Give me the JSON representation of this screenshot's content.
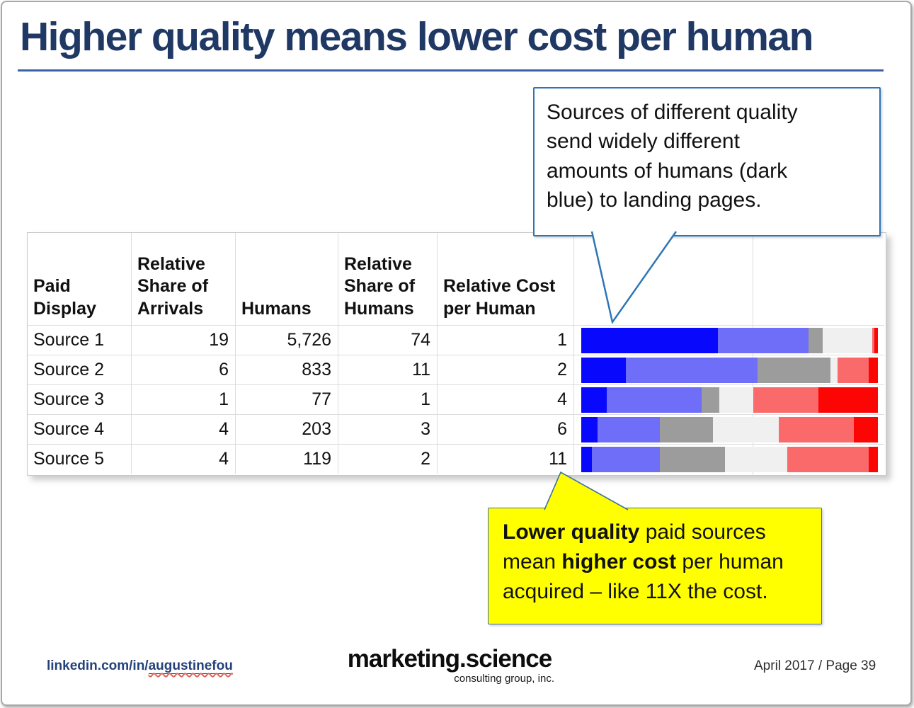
{
  "slide": {
    "title": "Higher quality means lower cost per human",
    "footer": {
      "linkedin_prefix": "linkedin.com/in/",
      "linkedin_handle": "augustinefou",
      "brand": "marketing.science",
      "brand_sub": "consulting group, inc.",
      "date_page": "April 2017 / Page 39"
    }
  },
  "callouts": {
    "top": {
      "text": "Sources of different quality\nsend widely different\namounts of humans (dark\nblue) to landing pages."
    },
    "bottom": {
      "segments": [
        {
          "text": "Lower quality",
          "bold": true
        },
        {
          "text": " paid sources\nmean ",
          "bold": false
        },
        {
          "text": "higher cost",
          "bold": true
        },
        {
          "text": " per human\nacquired – like 11X the cost.",
          "bold": false
        }
      ]
    }
  },
  "table": {
    "headers": [
      "Paid\nDisplay",
      "Relative\nShare of\nArrivals",
      "Humans",
      "Relative\nShare of\nHumans",
      "Relative Cost\nper Human"
    ],
    "rows": [
      {
        "label": "Source 1",
        "values": [
          "19",
          "5,726",
          "74",
          "1"
        ]
      },
      {
        "label": "Source 2",
        "values": [
          "6",
          "833",
          "11",
          "2"
        ]
      },
      {
        "label": "Source 3",
        "values": [
          "1",
          "77",
          "1",
          "4"
        ]
      },
      {
        "label": "Source 4",
        "values": [
          "4",
          "203",
          "3",
          "6"
        ]
      },
      {
        "label": "Source 5",
        "values": [
          "4",
          "119",
          "2",
          "11"
        ]
      }
    ]
  },
  "chart_data": {
    "type": "bar",
    "variant": "horizontal-stacked",
    "title": "Higher quality means lower cost per human",
    "categories": [
      "Source 1",
      "Source 2",
      "Source 3",
      "Source 4",
      "Source 5"
    ],
    "columns": [
      "Paid Display",
      "Relative Share of Arrivals",
      "Humans",
      "Relative Share of Humans",
      "Relative Cost per Human"
    ],
    "table_values": {
      "relative_share_of_arrivals": [
        19,
        6,
        1,
        4,
        4
      ],
      "humans": [
        5726,
        833,
        77,
        203,
        119
      ],
      "relative_share_of_humans": [
        74,
        11,
        1,
        3,
        2
      ],
      "relative_cost_per_human": [
        1,
        2,
        4,
        6,
        11
      ]
    },
    "series": [
      {
        "name": "dark-blue",
        "color": "#0808FC",
        "values": [
          46,
          15,
          8.5,
          5.5,
          3.5
        ]
      },
      {
        "name": "medium-blue",
        "color": "#6E6EF8",
        "values": [
          30.5,
          44.5,
          32,
          21,
          23
        ]
      },
      {
        "name": "gray",
        "color": "#9C9C9C",
        "values": [
          5,
          24.5,
          6,
          18,
          22
        ]
      },
      {
        "name": "light-gray",
        "color": "#F0F0F0",
        "values": [
          16.5,
          2.5,
          11.5,
          22,
          21
        ]
      },
      {
        "name": "salmon",
        "color": "#FA6A6A",
        "values": [
          0.8,
          10.5,
          22,
          25.5,
          27.5
        ]
      },
      {
        "name": "red",
        "color": "#FB0505",
        "values": [
          1.2,
          3,
          20,
          8,
          3
        ]
      }
    ],
    "unit": "percent of full bar width",
    "legend": "none (colors explained by callout: dark blue = humans)",
    "grid": "light vertical gridline inside bar area",
    "annotation_top": "Sources of different quality send widely different amounts of humans (dark blue) to landing pages.",
    "annotation_bottom": "Lower quality paid sources mean higher cost per human acquired – like 11X the cost."
  },
  "colors": {
    "title_navy": "#1F3864",
    "title_rule_blue": "#3A62A7",
    "callout_border_blue": "#2E75B6",
    "callout_yellow": "#FFFF00",
    "yellow_border": "#41719C",
    "grid_gray": "#DCDCDC"
  }
}
